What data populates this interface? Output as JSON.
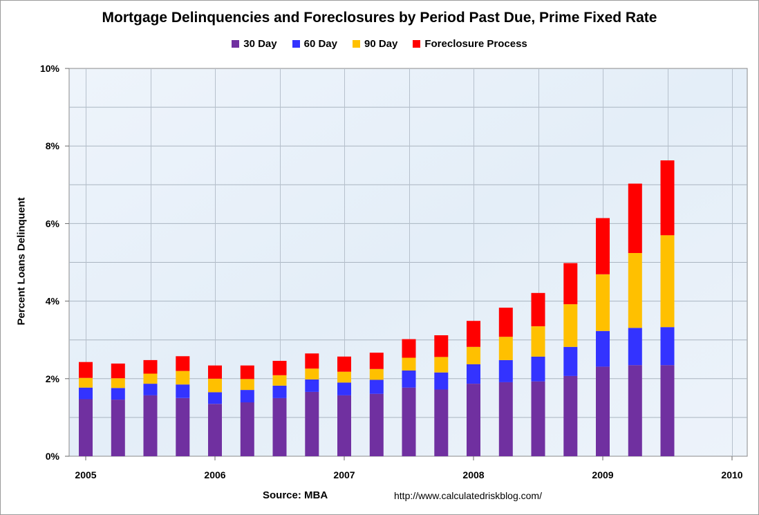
{
  "chart_data": {
    "type": "bar",
    "stacked": true,
    "title": "Mortgage Delinquencies and Foreclosures by Period Past Due, Prime Fixed Rate",
    "ylabel": "Percent Loans Delinquent",
    "xlabel": "",
    "ylim": [
      0,
      10
    ],
    "yticks": [
      "0%",
      "2%",
      "4%",
      "6%",
      "8%",
      "10%"
    ],
    "xlim": [
      2005,
      2010
    ],
    "xticks": [
      "2005",
      "2006",
      "2007",
      "2008",
      "2009",
      "2010"
    ],
    "grid": true,
    "legend_position": "top",
    "x": [
      2005.0,
      2005.25,
      2005.5,
      2005.75,
      2006.0,
      2006.25,
      2006.5,
      2006.75,
      2007.0,
      2007.25,
      2007.5,
      2007.75,
      2008.0,
      2008.25,
      2008.5,
      2008.75,
      2009.0,
      2009.25,
      2009.5
    ],
    "series": [
      {
        "name": "30 Day",
        "color": "#7030a0",
        "values": [
          1.47,
          1.46,
          1.57,
          1.5,
          1.35,
          1.39,
          1.5,
          1.66,
          1.57,
          1.61,
          1.77,
          1.72,
          1.87,
          1.91,
          1.93,
          2.07,
          2.31,
          2.35,
          2.35
        ]
      },
      {
        "name": "60 Day",
        "color": "#3333ff",
        "values": [
          0.3,
          0.3,
          0.3,
          0.35,
          0.3,
          0.32,
          0.32,
          0.32,
          0.33,
          0.36,
          0.44,
          0.44,
          0.5,
          0.57,
          0.64,
          0.75,
          0.92,
          0.96,
          0.98
        ]
      },
      {
        "name": "90 Day",
        "color": "#ffc000",
        "values": [
          0.25,
          0.25,
          0.26,
          0.35,
          0.35,
          0.28,
          0.27,
          0.28,
          0.28,
          0.28,
          0.33,
          0.4,
          0.45,
          0.6,
          0.78,
          1.1,
          1.46,
          1.93,
          2.37
        ]
      },
      {
        "name": "Foreclosure Process",
        "color": "#ff0000",
        "values": [
          0.41,
          0.38,
          0.35,
          0.38,
          0.34,
          0.35,
          0.37,
          0.39,
          0.39,
          0.42,
          0.48,
          0.56,
          0.67,
          0.75,
          0.86,
          1.06,
          1.45,
          1.79,
          1.93
        ]
      }
    ]
  },
  "footer": {
    "source": "Source: MBA",
    "url": "http://www.calculatedriskblog.com/"
  }
}
